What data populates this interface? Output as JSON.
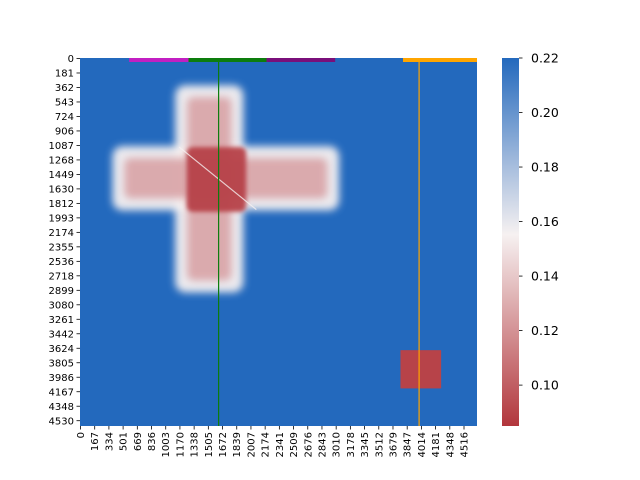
{
  "chart_data": {
    "type": "heatmap",
    "title": "",
    "xlabel": "",
    "ylabel": "",
    "x_ticks": [
      "0",
      "167",
      "334",
      "501",
      "669",
      "836",
      "1003",
      "1170",
      "1338",
      "1505",
      "1672",
      "1839",
      "2007",
      "2174",
      "2341",
      "2509",
      "2676",
      "2843",
      "3010",
      "3178",
      "3345",
      "3512",
      "3679",
      "3847",
      "4014",
      "4181",
      "4348",
      "4516"
    ],
    "y_ticks": [
      "0",
      "181",
      "362",
      "543",
      "724",
      "906",
      "1087",
      "1268",
      "1449",
      "1630",
      "1812",
      "1993",
      "2174",
      "2355",
      "2536",
      "2718",
      "2899",
      "3080",
      "3261",
      "3442",
      "3624",
      "3805",
      "3986",
      "4167",
      "4348",
      "4530"
    ],
    "xlim": [
      0,
      4683
    ],
    "ylim": [
      0,
      4711
    ],
    "colorbar": {
      "min": 0.085,
      "max": 0.22,
      "ticks": [
        "0.22",
        "0.20",
        "0.18",
        "0.16",
        "0.14",
        "0.12",
        "0.10"
      ],
      "tick_values": [
        0.22,
        0.2,
        0.18,
        0.16,
        0.14,
        0.12,
        0.1
      ],
      "colormap": "diverging red-white-blue",
      "color_low": "#b2363c",
      "color_mid": "#f6f1f1",
      "color_high": "#2369bd"
    },
    "background_value": 0.22,
    "regions": [
      {
        "shape": "cross-vertical-arm",
        "x_range": [
          1170,
          1880
        ],
        "y_range": [
          400,
          2950
        ],
        "value": 0.1
      },
      {
        "shape": "cross-horizontal-arm",
        "x_range": [
          430,
          3010
        ],
        "y_range": [
          1180,
          1900
        ],
        "value": 0.1
      },
      {
        "shape": "core",
        "x_range": [
          1260,
          1960
        ],
        "y_range": [
          1140,
          1970
        ],
        "value": 0.09
      },
      {
        "shape": "block",
        "x_range": [
          3780,
          4260
        ],
        "y_range": [
          3740,
          4230
        ],
        "value": 0.09
      }
    ],
    "top_segments": [
      {
        "x_range": [
          580,
          1280
        ],
        "color": "#c21fc2"
      },
      {
        "x_range": [
          1280,
          2200
        ],
        "color": "#0d7d0d"
      },
      {
        "x_range": [
          2200,
          3010
        ],
        "color": "#7a0f7a"
      },
      {
        "x_range": [
          3810,
          4683
        ],
        "color": "#ffa500"
      }
    ],
    "vertical_lines": [
      {
        "x": 1635,
        "color": "#0d7d0d"
      },
      {
        "x": 4000,
        "color": "#ffa500"
      }
    ],
    "diagonal": {
      "from": [
        1170,
        1140
      ],
      "to": [
        2080,
        1940
      ],
      "color": "#f6f1f1"
    }
  }
}
